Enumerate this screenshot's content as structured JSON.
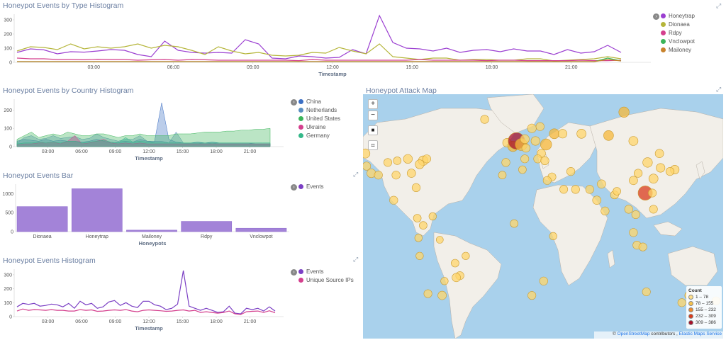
{
  "panels": {
    "type_histogram": {
      "title": "Honeypot Events by Type Histogram",
      "x_title": "Timestamp",
      "legend": [
        {
          "name": "Honeytrap",
          "color": "#9b3fd1"
        },
        {
          "name": "Dionaea",
          "color": "#b5b53a"
        },
        {
          "name": "Rdpy",
          "color": "#d43f8d"
        },
        {
          "name": "Vnclowpot",
          "color": "#3bb55a"
        },
        {
          "name": "Mailoney",
          "color": "#c8822c"
        }
      ]
    },
    "country_histogram": {
      "title": "Honeypot Events by Country Histogram",
      "x_title": "Timestamp",
      "legend": [
        {
          "name": "China",
          "color": "#3b6fc4"
        },
        {
          "name": "Netherlands",
          "color": "#5a8fc0"
        },
        {
          "name": "United States",
          "color": "#3bb55a"
        },
        {
          "name": "Ukraine",
          "color": "#d43f8d"
        },
        {
          "name": "Germany",
          "color": "#34b889"
        }
      ]
    },
    "events_bar": {
      "title": "Honeypot Events Bar",
      "x_title": "Honeypots",
      "legend": [
        {
          "name": "Events",
          "color": "#7b3fc4"
        }
      ]
    },
    "events_histogram": {
      "title": "Honeypot Events Histogram",
      "x_title": "Timestamp",
      "legend": [
        {
          "name": "Events",
          "color": "#7b3fc4"
        },
        {
          "name": "Unique Source IPs",
          "color": "#d43f8d"
        }
      ]
    },
    "attack_map": {
      "title": "Honeypot Attack Map",
      "controls": {
        "zoom_in": "+",
        "zoom_out": "−",
        "square": "■",
        "crop": "⌗"
      },
      "legend_title": "Count",
      "legend_ranges": [
        {
          "label": "1 – 78",
          "color": "#ffe08a"
        },
        {
          "label": "78 – 155",
          "color": "#f7c24a"
        },
        {
          "label": "155 – 232",
          "color": "#ef8a2c"
        },
        {
          "label": "232 – 309",
          "color": "#d93b1c"
        },
        {
          "label": "309 – 386",
          "color": "#a8102a"
        }
      ],
      "attribution_prefix": "©",
      "attribution_link1": "OpenStreetMap",
      "attribution_mid": " contributors , ",
      "attribution_link2": "Elastic Maps Service"
    }
  },
  "chart_data": [
    {
      "type": "line",
      "title": "Honeypot Events by Type Histogram",
      "xlabel": "Timestamp",
      "x_ticks": [
        "03:00",
        "06:00",
        "09:00",
        "12:00",
        "15:00",
        "18:00",
        "21:00"
      ],
      "y_ticks": [
        0,
        100,
        200,
        300
      ],
      "ylim": [
        0,
        340
      ],
      "series": [
        {
          "name": "Honeytrap",
          "color": "#9b3fd1",
          "values": [
            70,
            95,
            88,
            60,
            75,
            72,
            80,
            90,
            85,
            55,
            40,
            150,
            85,
            70,
            65,
            70,
            65,
            160,
            130,
            30,
            25,
            45,
            40,
            30,
            35,
            90,
            60,
            330,
            140,
            100,
            95,
            80,
            100,
            70,
            85,
            90,
            75,
            95,
            80,
            80,
            55,
            90,
            65,
            75,
            120,
            70
          ]
        },
        {
          "name": "Dionaea",
          "color": "#b5b53a",
          "values": [
            80,
            110,
            105,
            90,
            130,
            95,
            110,
            100,
            110,
            130,
            100,
            120,
            110,
            85,
            55,
            110,
            80,
            60,
            70,
            50,
            45,
            50,
            70,
            65,
            105,
            80,
            60,
            130,
            40,
            30,
            20,
            30,
            30,
            15,
            20,
            20,
            15,
            15,
            25,
            25,
            10,
            15,
            20,
            25,
            40,
            25
          ]
        },
        {
          "name": "Rdpy",
          "color": "#d43f8d",
          "values": [
            30,
            25,
            25,
            20,
            20,
            18,
            22,
            20,
            20,
            15,
            18,
            20,
            15,
            20,
            18,
            15,
            15,
            15,
            15,
            15,
            15,
            12,
            20,
            15,
            15,
            15,
            15,
            15,
            15,
            15,
            20,
            15,
            15,
            15,
            15,
            12,
            15,
            15,
            12,
            12,
            12,
            12,
            15,
            12,
            12,
            15
          ]
        },
        {
          "name": "Vnclowpot",
          "color": "#3bb55a",
          "values": [
            5,
            5,
            5,
            5,
            5,
            5,
            5,
            5,
            5,
            5,
            5,
            5,
            5,
            5,
            5,
            5,
            5,
            5,
            5,
            5,
            5,
            5,
            5,
            5,
            5,
            5,
            5,
            5,
            5,
            5,
            5,
            5,
            5,
            5,
            5,
            5,
            5,
            5,
            5,
            5,
            5,
            5,
            5,
            5,
            30,
            10
          ]
        },
        {
          "name": "Mailoney",
          "color": "#c8822c",
          "values": [
            5,
            5,
            5,
            5,
            5,
            5,
            5,
            5,
            5,
            5,
            5,
            5,
            5,
            5,
            5,
            5,
            5,
            5,
            5,
            5,
            5,
            5,
            5,
            5,
            5,
            5,
            5,
            5,
            5,
            5,
            5,
            5,
            5,
            5,
            5,
            5,
            5,
            5,
            5,
            5,
            5,
            5,
            5,
            5,
            20,
            10
          ]
        }
      ]
    },
    {
      "type": "area",
      "title": "Honeypot Events by Country Histogram",
      "xlabel": "Timestamp",
      "x_ticks": [
        "03:00",
        "06:00",
        "09:00",
        "12:00",
        "15:00",
        "18:00",
        "21:00"
      ],
      "y_ticks": [
        0,
        100,
        200
      ],
      "ylim": [
        0,
        260
      ],
      "series": [
        {
          "name": "China",
          "color": "#3b6fc4",
          "values": [
            30,
            40,
            35,
            30,
            40,
            30,
            35,
            30,
            30,
            25,
            30,
            40,
            30,
            20,
            25,
            30,
            25,
            40,
            30,
            25,
            240,
            40,
            25,
            20,
            20,
            25,
            20,
            25,
            20,
            20,
            20,
            20,
            20,
            15,
            15,
            15
          ]
        },
        {
          "name": "Netherlands",
          "color": "#5a8fc0",
          "values": [
            20,
            50,
            60,
            40,
            45,
            60,
            45,
            50,
            55,
            40,
            45,
            70,
            50,
            40,
            30,
            40,
            40,
            60,
            30,
            30,
            30,
            20,
            80,
            20,
            20,
            20,
            15,
            20,
            15,
            15,
            15,
            15,
            15,
            15,
            15,
            15
          ]
        },
        {
          "name": "United States",
          "color": "#3bb55a",
          "values": [
            40,
            60,
            80,
            50,
            60,
            70,
            60,
            80,
            70,
            60,
            60,
            70,
            70,
            60,
            50,
            60,
            60,
            70,
            60,
            60,
            60,
            60,
            70,
            70,
            70,
            75,
            80,
            80,
            80,
            85,
            85,
            90,
            90,
            95,
            95,
            100
          ]
        },
        {
          "name": "Ukraine",
          "color": "#d43f8d",
          "values": [
            10,
            15,
            15,
            20,
            20,
            25,
            15,
            30,
            60,
            15,
            20,
            30,
            40,
            20,
            15,
            20,
            15,
            20,
            15,
            15,
            15,
            15,
            15,
            15,
            15,
            15,
            15,
            15,
            15,
            15,
            15,
            15,
            15,
            15,
            15,
            15
          ]
        },
        {
          "name": "Germany",
          "color": "#34b889",
          "values": [
            15,
            20,
            20,
            25,
            20,
            25,
            20,
            30,
            30,
            20,
            25,
            30,
            35,
            25,
            20,
            50,
            25,
            30,
            25,
            20,
            20,
            20,
            20,
            20,
            20,
            20,
            20,
            20,
            20,
            20,
            20,
            20,
            20,
            20,
            20,
            20
          ]
        }
      ]
    },
    {
      "type": "bar",
      "title": "Honeypot Events Bar",
      "xlabel": "Honeypots",
      "categories": [
        "Dionaea",
        "Honeytrap",
        "Mailoney",
        "Rdpy",
        "Vnclowpot"
      ],
      "series": [
        {
          "name": "Events",
          "color": "#a383d8",
          "values": [
            660,
            1130,
            40,
            270,
            90
          ]
        }
      ],
      "y_ticks": [
        0,
        500,
        1000
      ],
      "ylim": [
        0,
        1250
      ]
    },
    {
      "type": "line",
      "title": "Honeypot Events Histogram",
      "xlabel": "Timestamp",
      "x_ticks": [
        "03:00",
        "06:00",
        "09:00",
        "12:00",
        "15:00",
        "18:00",
        "21:00"
      ],
      "y_ticks": [
        0,
        100,
        200,
        300
      ],
      "ylim": [
        0,
        340
      ],
      "series": [
        {
          "name": "Events",
          "color": "#7b3fc4",
          "values": [
            70,
            95,
            88,
            95,
            75,
            80,
            90,
            85,
            70,
            95,
            60,
            110,
            85,
            95,
            60,
            70,
            105,
            115,
            80,
            100,
            75,
            65,
            110,
            110,
            85,
            75,
            50,
            60,
            90,
            330,
            75,
            60,
            45,
            60,
            45,
            30,
            35,
            75,
            25,
            20,
            60,
            50,
            60,
            40,
            70,
            40
          ]
        },
        {
          "name": "Unique Source IPs",
          "color": "#d43f8d",
          "values": [
            40,
            55,
            45,
            50,
            48,
            45,
            50,
            45,
            45,
            40,
            40,
            50,
            45,
            48,
            38,
            40,
            45,
            48,
            45,
            50,
            40,
            35,
            45,
            48,
            45,
            42,
            38,
            40,
            45,
            48,
            40,
            45,
            30,
            35,
            30,
            25,
            30,
            40,
            20,
            15,
            35,
            38,
            40,
            30,
            42,
            28
          ]
        }
      ]
    }
  ],
  "map_points": [
    {
      "lon": -123,
      "lat": 45,
      "count": 60
    },
    {
      "lon": -118,
      "lat": 34,
      "count": 50
    },
    {
      "lon": -97,
      "lat": 33,
      "count": 40
    },
    {
      "lon": -87,
      "lat": 42,
      "count": 55
    },
    {
      "lon": -80,
      "lat": 26,
      "count": 40
    },
    {
      "lon": -74,
      "lat": 41,
      "count": 70
    },
    {
      "lon": -77,
      "lat": 39,
      "count": 55
    },
    {
      "lon": -84,
      "lat": 34,
      "count": 45
    },
    {
      "lon": -104,
      "lat": 40,
      "count": 35
    },
    {
      "lon": -112,
      "lat": 33,
      "count": 40
    },
    {
      "lon": -96,
      "lat": 41,
      "count": 30
    },
    {
      "lon": -71,
      "lat": 42,
      "count": 40
    },
    {
      "lon": -122,
      "lat": 38,
      "count": 40
    },
    {
      "lon": -99,
      "lat": 19,
      "count": 40
    },
    {
      "lon": -79,
      "lat": 9,
      "count": 30
    },
    {
      "lon": -74,
      "lat": 5,
      "count": 30
    },
    {
      "lon": -66,
      "lat": 10,
      "count": 25
    },
    {
      "lon": -78,
      "lat": -2,
      "count": 25
    },
    {
      "lon": -77,
      "lat": -12,
      "count": 25
    },
    {
      "lon": -47,
      "lat": -16,
      "count": 30
    },
    {
      "lon": -43,
      "lat": -23,
      "count": 40
    },
    {
      "lon": -46,
      "lat": -24,
      "count": 45
    },
    {
      "lon": -58,
      "lat": -34,
      "count": 45
    },
    {
      "lon": -70,
      "lat": -33,
      "count": 35
    },
    {
      "lon": -38,
      "lat": -12,
      "count": 25
    },
    {
      "lon": -60,
      "lat": -3,
      "count": 20
    },
    {
      "lon": -56,
      "lat": -26,
      "count": 25
    },
    {
      "lon": -22,
      "lat": 64,
      "count": 40
    },
    {
      "lon": -3,
      "lat": 51,
      "count": 50
    },
    {
      "lon": 2,
      "lat": 49,
      "count": 90
    },
    {
      "lon": 5,
      "lat": 52,
      "count": 380
    },
    {
      "lon": 9,
      "lat": 50,
      "count": 150
    },
    {
      "lon": 12,
      "lat": 53,
      "count": 55
    },
    {
      "lon": 13,
      "lat": 48,
      "count": 40
    },
    {
      "lon": 21,
      "lat": 52,
      "count": 50
    },
    {
      "lon": 18,
      "lat": 59,
      "count": 50
    },
    {
      "lon": 25,
      "lat": 60,
      "count": 40
    },
    {
      "lon": 30,
      "lat": 50,
      "count": 120
    },
    {
      "lon": 37,
      "lat": 56,
      "count": 80
    },
    {
      "lon": 26,
      "lat": 45,
      "count": 45
    },
    {
      "lon": 23,
      "lat": 42,
      "count": 40
    },
    {
      "lon": 12,
      "lat": 42,
      "count": 35
    },
    {
      "lon": -4,
      "lat": 40,
      "count": 40
    },
    {
      "lon": 29,
      "lat": 41,
      "count": 40
    },
    {
      "lon": 44,
      "lat": 56,
      "count": 50
    },
    {
      "lon": 60,
      "lat": 56,
      "count": 60
    },
    {
      "lon": 83,
      "lat": 55,
      "count": 80
    },
    {
      "lon": 104,
      "lat": 52,
      "count": 60
    },
    {
      "lon": 96,
      "lat": 68,
      "count": 90
    },
    {
      "lon": 35,
      "lat": 32,
      "count": 35
    },
    {
      "lon": 45,
      "lat": 25,
      "count": 35
    },
    {
      "lon": 51,
      "lat": 35,
      "count": 40
    },
    {
      "lon": 55,
      "lat": 25,
      "count": 40
    },
    {
      "lon": 67,
      "lat": 25,
      "count": 40
    },
    {
      "lon": 77,
      "lat": 28,
      "count": 45
    },
    {
      "lon": 73,
      "lat": 19,
      "count": 45
    },
    {
      "lon": 80,
      "lat": 13,
      "count": 40
    },
    {
      "lon": 88,
      "lat": 22,
      "count": 35
    },
    {
      "lon": 90,
      "lat": 24,
      "count": 30
    },
    {
      "lon": 100,
      "lat": 14,
      "count": 40
    },
    {
      "lon": 106,
      "lat": 11,
      "count": 35
    },
    {
      "lon": 104,
      "lat": 1,
      "count": 40
    },
    {
      "lon": 114,
      "lat": 23,
      "count": 250
    },
    {
      "lon": 121,
      "lat": 31,
      "count": 60
    },
    {
      "lon": 116,
      "lat": 40,
      "count": 70
    },
    {
      "lon": 108,
      "lat": 34,
      "count": 40
    },
    {
      "lon": 104,
      "lat": 30,
      "count": 45
    },
    {
      "lon": 120,
      "lat": 23,
      "count": 35
    },
    {
      "lon": 127,
      "lat": 37,
      "count": 50
    },
    {
      "lon": 126,
      "lat": 45,
      "count": 45
    },
    {
      "lon": 139,
      "lat": 36,
      "count": 50
    },
    {
      "lon": 135,
      "lat": 35,
      "count": 40
    },
    {
      "lon": 121,
      "lat": 14,
      "count": 35
    },
    {
      "lon": 107,
      "lat": -6,
      "count": 40
    },
    {
      "lon": 112,
      "lat": -7,
      "count": 35
    },
    {
      "lon": 115,
      "lat": -32,
      "count": 35
    },
    {
      "lon": 151,
      "lat": -34,
      "count": 40
    },
    {
      "lon": 145,
      "lat": -38,
      "count": 35
    },
    {
      "lon": 174,
      "lat": -37,
      "count": 35
    },
    {
      "lon": 28,
      "lat": -26,
      "count": 40
    },
    {
      "lon": 18,
      "lat": -34,
      "count": 35
    },
    {
      "lon": 3,
      "lat": 6,
      "count": 30
    },
    {
      "lon": 36,
      "lat": -1,
      "count": 25
    },
    {
      "lon": 31,
      "lat": 30,
      "count": 35
    },
    {
      "lon": -7,
      "lat": 33,
      "count": 30
    },
    {
      "lon": 10,
      "lat": 36,
      "count": 30
    }
  ]
}
